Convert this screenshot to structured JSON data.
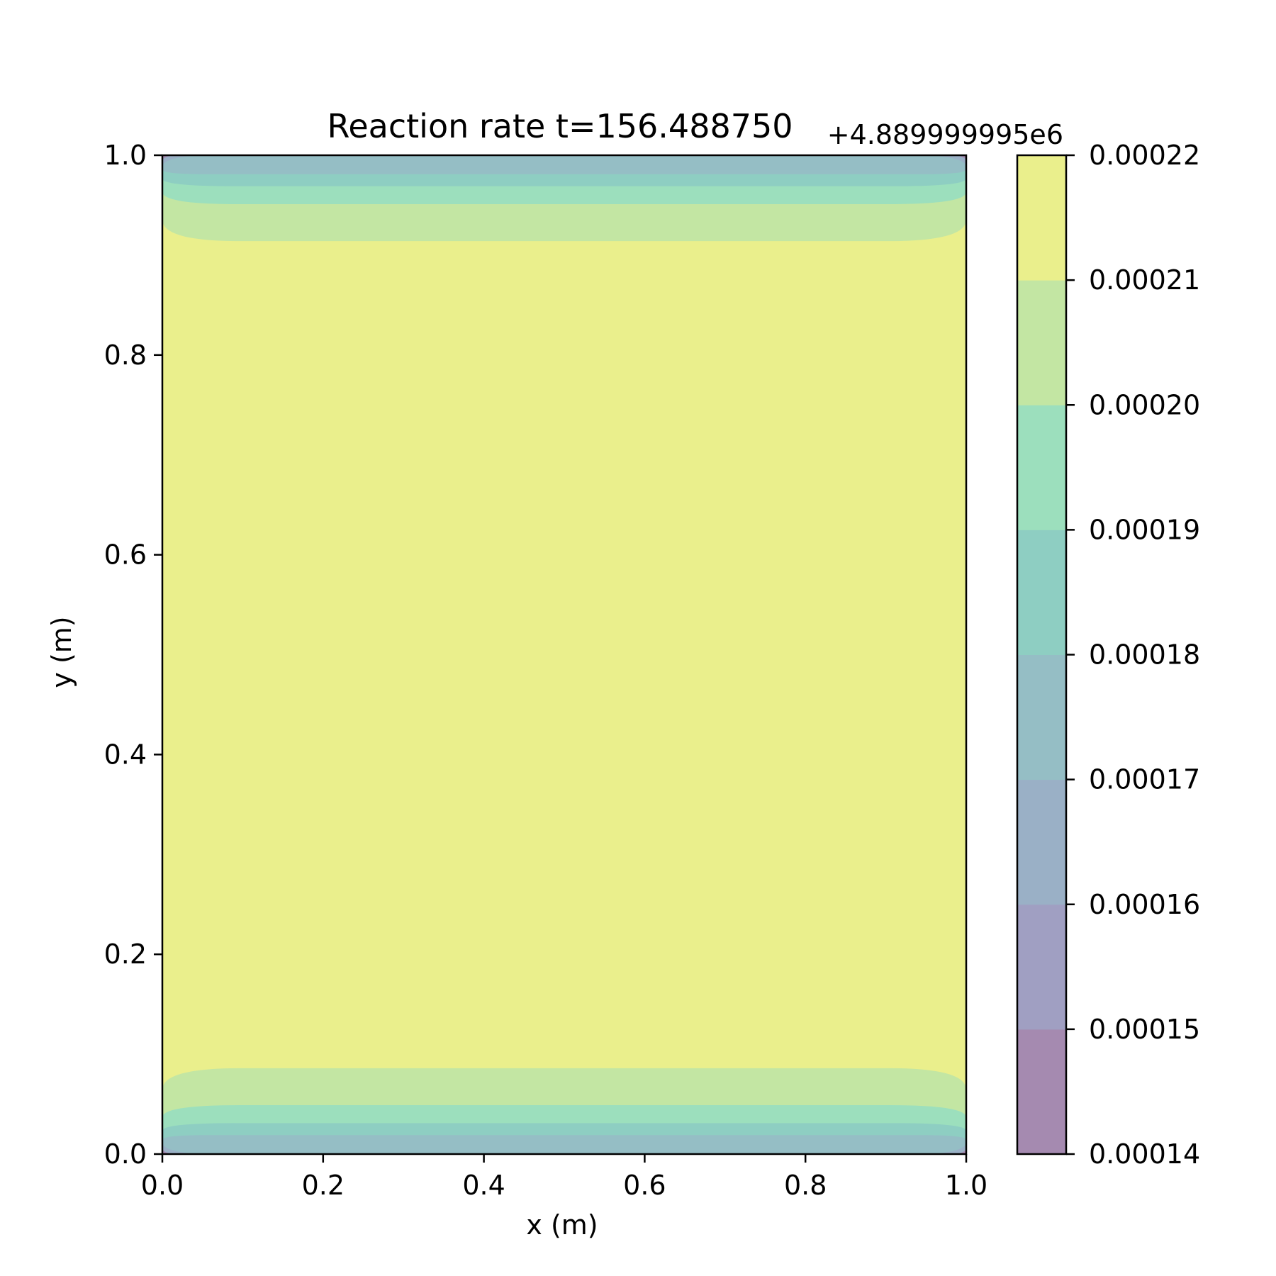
{
  "chart_data": {
    "type": "contour",
    "title": "Reaction rate t=156.488750",
    "offset_label": "+4.889999995e6",
    "xlabel": "x (m)",
    "ylabel": "y (m)",
    "xlim": [
      0.0,
      1.0
    ],
    "ylim": [
      0.0,
      1.0
    ],
    "x_ticks": [
      "0.0",
      "0.2",
      "0.4",
      "0.6",
      "0.8",
      "1.0"
    ],
    "y_ticks": [
      "0.0",
      "0.2",
      "0.4",
      "0.6",
      "0.8",
      "1.0"
    ],
    "colorbar": {
      "range": [
        0.00014,
        0.00022
      ],
      "tick_labels": [
        "0.00014",
        "0.00015",
        "0.00016",
        "0.00017",
        "0.00018",
        "0.00019",
        "0.00020",
        "0.00021",
        "0.00022"
      ],
      "level_colors": [
        "#a58ab0",
        "#a09fc2",
        "#9ab0c6",
        "#95bec5",
        "#8ecec2",
        "#9cdfbd",
        "#c3e6a3",
        "#eaef8c"
      ]
    },
    "field_description": "Value is near 0.000215 across the interior and decreases in thin bands near y=0 and y=1, lowest at the corners.",
    "bands_bottom": [
      {
        "level_index": 6,
        "y_range": [
          0.049,
          0.086
        ]
      },
      {
        "level_index": 5,
        "y_range": [
          0.031,
          0.049
        ]
      },
      {
        "level_index": 4,
        "y_range": [
          0.019,
          0.031
        ]
      },
      {
        "level_index": 3,
        "y_range": [
          0.0,
          0.019
        ]
      }
    ],
    "bands_top": [
      {
        "level_index": 6,
        "y_range": [
          0.914,
          0.951
        ]
      },
      {
        "level_index": 5,
        "y_range": [
          0.969,
          0.951
        ]
      },
      {
        "level_index": 4,
        "y_range": [
          0.981,
          0.969
        ]
      },
      {
        "level_index": 3,
        "y_range": [
          1.0,
          0.981
        ]
      }
    ],
    "interior_level_index": 7
  }
}
